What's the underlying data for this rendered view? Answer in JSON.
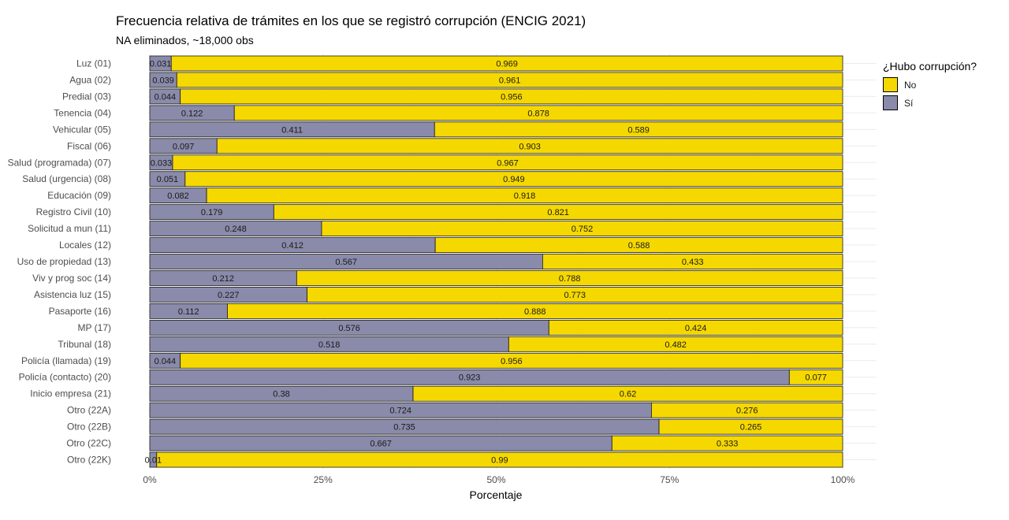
{
  "chart_data": {
    "type": "bar",
    "orientation": "horizontal",
    "stacked": true,
    "title": "Frecuencia relativa de trámites en los que se registró corrupción (ENCIG 2021)",
    "subtitle": "NA eliminados, ~18,000 obs",
    "xlabel": "Porcentaje",
    "ylabel": "",
    "xlim": [
      0,
      1
    ],
    "x_ticks": [
      "0%",
      "25%",
      "50%",
      "75%",
      "100%"
    ],
    "grid": true,
    "legend_title": "¿Hubo corrupción?",
    "legend_position": "right",
    "categories": [
      "Luz (01)",
      "Agua (02)",
      "Predial (03)",
      "Tenencia (04)",
      "Vehicular (05)",
      "Fiscal (06)",
      "Salud (programada) (07)",
      "Salud (urgencia) (08)",
      "Educación (09)",
      "Registro Civil (10)",
      "Solicitud a mun (11)",
      "Locales (12)",
      "Uso de propiedad (13)",
      "Viv y prog soc (14)",
      "Asistencia luz (15)",
      "Pasaporte (16)",
      "MP (17)",
      "Tribunal (18)",
      "Policía (llamada) (19)",
      "Policía (contacto) (20)",
      "Inicio empresa (21)",
      "Otro (22A)",
      "Otro (22B)",
      "Otro (22C)",
      "Otro (22K)"
    ],
    "series": [
      {
        "name": "Sí",
        "color": "#8a8aaa",
        "values": [
          0.031,
          0.039,
          0.044,
          0.122,
          0.411,
          0.097,
          0.033,
          0.051,
          0.082,
          0.179,
          0.248,
          0.412,
          0.567,
          0.212,
          0.227,
          0.112,
          0.576,
          0.518,
          0.044,
          0.923,
          0.38,
          0.724,
          0.735,
          0.667,
          0.01
        ],
        "labels": [
          "0.031",
          "0.039",
          "0.044",
          "0.122",
          "0.411",
          "0.097",
          "0.033",
          "0.051",
          "0.082",
          "0.179",
          "0.248",
          "0.412",
          "0.567",
          "0.212",
          "0.227",
          "0.112",
          "0.576",
          "0.518",
          "0.044",
          "0.923",
          "0.38",
          "0.724",
          "0.735",
          "0.667",
          "0.01"
        ]
      },
      {
        "name": "No",
        "color": "#f5d800",
        "values": [
          0.969,
          0.961,
          0.956,
          0.878,
          0.589,
          0.903,
          0.967,
          0.949,
          0.918,
          0.821,
          0.752,
          0.588,
          0.433,
          0.788,
          0.773,
          0.888,
          0.424,
          0.482,
          0.956,
          0.077,
          0.62,
          0.276,
          0.265,
          0.333,
          0.99
        ],
        "labels": [
          "0.969",
          "0.961",
          "0.956",
          "0.878",
          "0.589",
          "0.903",
          "0.967",
          "0.949",
          "0.918",
          "0.821",
          "0.752",
          "0.588",
          "0.433",
          "0.788",
          "0.773",
          "0.888",
          "0.424",
          "0.482",
          "0.956",
          "0.077",
          "0.62",
          "0.276",
          "0.265",
          "0.333",
          "0.99"
        ]
      }
    ],
    "legend_order": [
      "No",
      "Sí"
    ]
  }
}
